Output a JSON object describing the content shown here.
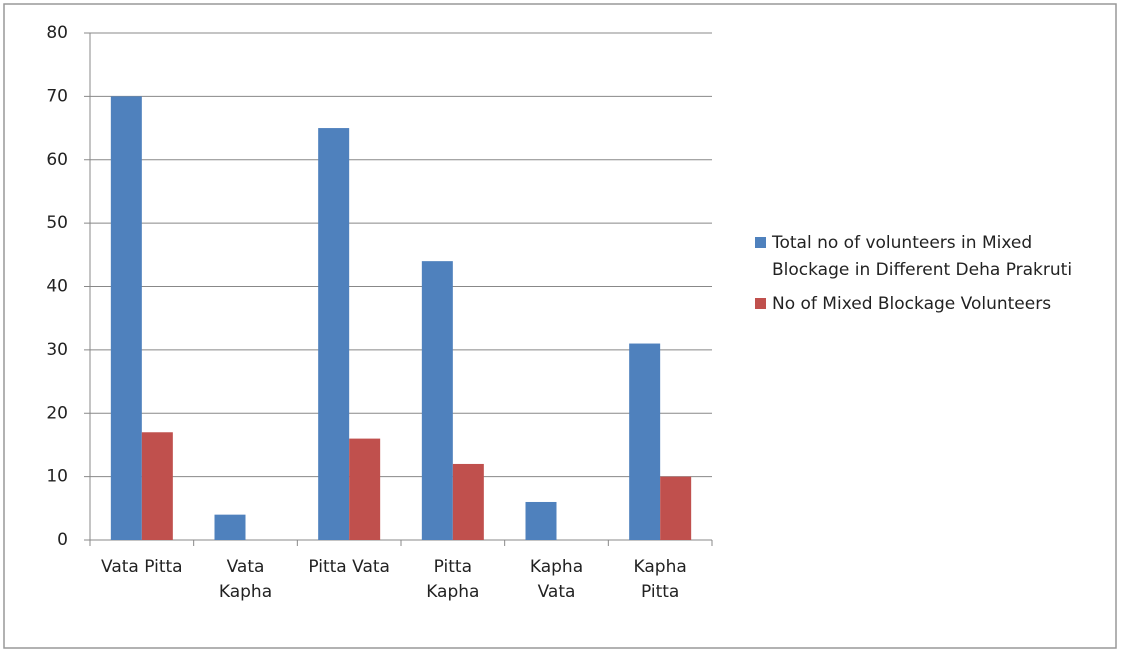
{
  "chart_data": {
    "type": "bar",
    "categories": [
      [
        "Vata Pitta"
      ],
      [
        "Vata",
        "Kapha"
      ],
      [
        "Pitta Vata"
      ],
      [
        "Pitta",
        "Kapha"
      ],
      [
        "Kapha",
        "Vata"
      ],
      [
        "Kapha",
        "Pitta"
      ]
    ],
    "series": [
      {
        "name": "Total no of volunteers in Mixed Blockage in Different Deha Prakruti",
        "color": "#4f81bd",
        "values": [
          70,
          4,
          65,
          44,
          6,
          31
        ]
      },
      {
        "name": "No of Mixed Blockage Volunteers",
        "color": "#c0504d",
        "values": [
          17,
          0,
          16,
          12,
          0,
          10
        ]
      }
    ],
    "ylim": [
      0,
      80
    ],
    "yticks": [
      0,
      10,
      20,
      30,
      40,
      50,
      60,
      70,
      80
    ],
    "grid": true,
    "legend": "right"
  }
}
